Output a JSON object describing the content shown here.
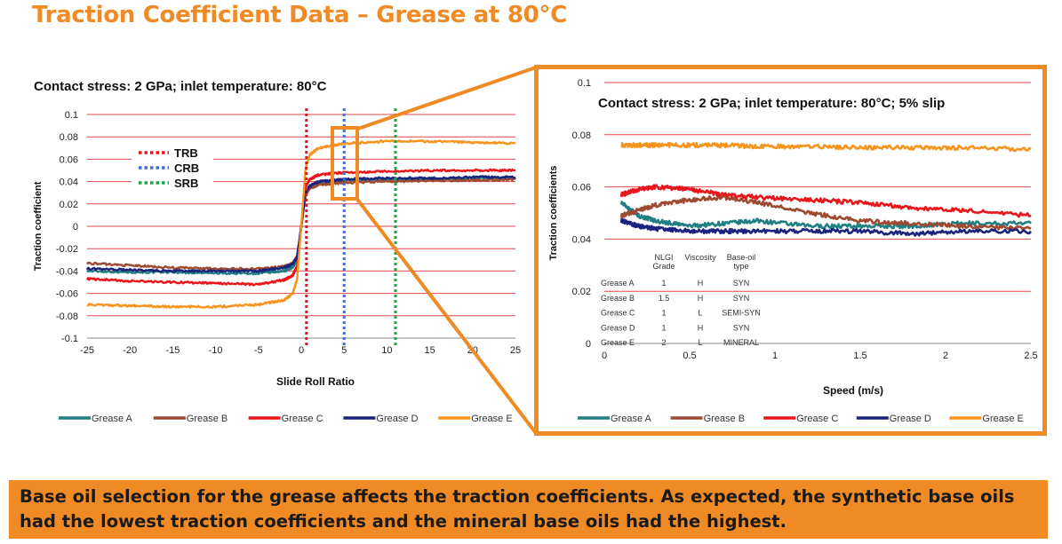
{
  "slide": {
    "title": "Traction Coefficient Data  –  Grease at 80°C",
    "conclusion": "Base oil selection for the grease affects the traction coefficients. As expected, the synthetic base oils had the lowest traction coefficients and the mineral base oils had the highest.",
    "colors": {
      "accent": "#f08a24",
      "gridline": "#e0474c"
    }
  },
  "chart_data": [
    {
      "type": "line",
      "title": "Contact stress: 2 GPa; inlet temperature: 80°C",
      "xlabel": "Slide Roll Ratio",
      "ylabel": "Traction coefficient",
      "xlim": [
        -25,
        25
      ],
      "ylim": [
        -0.1,
        0.1
      ],
      "x_ticks": [
        "-25",
        "-20",
        "-15",
        "-10",
        "-5",
        "0",
        "5",
        "10",
        "15",
        "20",
        "25"
      ],
      "y_ticks": [
        "-0.1",
        "-0.08",
        "-0.06",
        "-0.04",
        "-0.02",
        "0",
        "0.02",
        "0.04",
        "0.06",
        "0.08",
        "0.1"
      ],
      "grid": "horizontal",
      "legend_position": "bottom",
      "x": [
        -25,
        -20,
        -15,
        -10,
        -5,
        -2,
        -1,
        -0.5,
        0,
        0.5,
        1,
        2,
        5,
        10,
        15,
        20,
        25
      ],
      "series": [
        {
          "name": "Grease A",
          "color": "#1f7f82",
          "values": [
            -0.04,
            -0.041,
            -0.041,
            -0.042,
            -0.042,
            -0.04,
            -0.037,
            -0.03,
            0.0,
            0.03,
            0.036,
            0.039,
            0.041,
            0.042,
            0.042,
            0.043,
            0.043
          ]
        },
        {
          "name": "Grease B",
          "color": "#9e4a30",
          "values": [
            -0.033,
            -0.035,
            -0.037,
            -0.038,
            -0.038,
            -0.036,
            -0.033,
            -0.027,
            0.0,
            0.028,
            0.034,
            0.037,
            0.039,
            0.04,
            0.041,
            0.041,
            0.042
          ]
        },
        {
          "name": "Grease C",
          "color": "#e8161a",
          "values": [
            -0.047,
            -0.049,
            -0.05,
            -0.051,
            -0.052,
            -0.048,
            -0.044,
            -0.036,
            0.0,
            0.035,
            0.042,
            0.046,
            0.048,
            0.049,
            0.05,
            0.05,
            0.05
          ]
        },
        {
          "name": "Grease D",
          "color": "#1a237e",
          "values": [
            -0.038,
            -0.039,
            -0.04,
            -0.04,
            -0.04,
            -0.037,
            -0.034,
            -0.028,
            0.0,
            0.03,
            0.036,
            0.04,
            0.042,
            0.043,
            0.043,
            0.044,
            0.044
          ]
        },
        {
          "name": "Grease E",
          "color": "#f7941d",
          "values": [
            -0.07,
            -0.071,
            -0.072,
            -0.072,
            -0.07,
            -0.066,
            -0.06,
            -0.048,
            0.0,
            0.052,
            0.064,
            0.07,
            0.074,
            0.076,
            0.076,
            0.075,
            0.074
          ]
        }
      ],
      "reference_lines": [
        {
          "name": "TRB",
          "x": 0.6,
          "color": "#e8161a"
        },
        {
          "name": "CRB",
          "x": 5,
          "color": "#3f6fd6"
        },
        {
          "name": "SRB",
          "x": 11,
          "color": "#1ea34a"
        }
      ]
    },
    {
      "type": "line",
      "title": "Contact stress: 2 GPa; inlet temperature: 80°C; 5% slip",
      "xlabel": "Speed (m/s)",
      "ylabel": "Traction coefficients",
      "xlim": [
        0,
        2.5
      ],
      "ylim": [
        0,
        0.1
      ],
      "x_ticks": [
        "0",
        "0.5",
        "1",
        "1.5",
        "2",
        "2.5"
      ],
      "y_ticks": [
        "0",
        "0.02",
        "0.04",
        "0.06",
        "0.08",
        "0.1"
      ],
      "grid": "horizontal",
      "legend_position": "bottom",
      "x": [
        0.1,
        0.2,
        0.3,
        0.5,
        0.7,
        0.9,
        1.2,
        1.5,
        1.8,
        2.1,
        2.5
      ],
      "series": [
        {
          "name": "Grease A",
          "color": "#1f7f82",
          "values": [
            0.054,
            0.049,
            0.047,
            0.045,
            0.046,
            0.047,
            0.045,
            0.045,
            0.045,
            0.046,
            0.046
          ]
        },
        {
          "name": "Grease B",
          "color": "#9e4a30",
          "values": [
            0.049,
            0.051,
            0.053,
            0.055,
            0.056,
            0.054,
            0.05,
            0.047,
            0.046,
            0.045,
            0.044
          ]
        },
        {
          "name": "Grease C",
          "color": "#e8161a",
          "values": [
            0.057,
            0.059,
            0.06,
            0.059,
            0.057,
            0.056,
            0.055,
            0.054,
            0.052,
            0.051,
            0.049
          ]
        },
        {
          "name": "Grease D",
          "color": "#1a237e",
          "values": [
            0.047,
            0.045,
            0.044,
            0.043,
            0.043,
            0.043,
            0.043,
            0.043,
            0.042,
            0.043,
            0.043
          ]
        },
        {
          "name": "Grease E",
          "color": "#f7941d",
          "values": [
            0.076,
            0.076,
            0.076,
            0.076,
            0.076,
            0.0755,
            0.0755,
            0.075,
            0.075,
            0.075,
            0.0745
          ]
        }
      ],
      "table": {
        "headers": [
          "",
          "NLGI\nGrade",
          "Viscosity",
          "Base-oil\ntype"
        ],
        "rows": [
          [
            "Grease A",
            "1",
            "H",
            "SYN"
          ],
          [
            "Grease B",
            "1.5",
            "H",
            "SYN"
          ],
          [
            "Grease C",
            "1",
            "L",
            "SEMI-SYN"
          ],
          [
            "Grease D",
            "1",
            "H",
            "SYN"
          ],
          [
            "Grease E",
            "2",
            "L",
            "MINERAL"
          ]
        ]
      }
    }
  ]
}
